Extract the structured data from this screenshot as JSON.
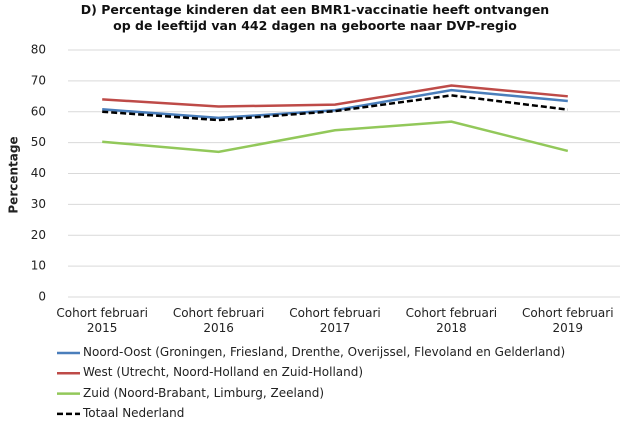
{
  "chart_data": {
    "type": "line",
    "title": "D) Percentage kinderen dat een BMR1-vaccinatie heeft ontvangen op de leeftijd van 442 dagen na geboorte naar DVP-regio",
    "y_label": "Percentage",
    "categories": [
      "Cohort februari 2015",
      "Cohort februari 2016",
      "Cohort februari 2017",
      "Cohort februari 2018",
      "Cohort februari 2019"
    ],
    "series": [
      {
        "name": "Noord-Oost (Groningen, Friesland, Drenthe, Overijssel, Flevoland en Gelderland)",
        "color": "#4a7ebb",
        "style": "solid",
        "values": [
          60.8,
          58,
          60.5,
          67,
          63.5
        ]
      },
      {
        "name": "West (Utrecht, Noord-Holland en Zuid-Holland)",
        "color": "#be4b48",
        "style": "solid",
        "values": [
          64,
          61.7,
          62.3,
          68.5,
          65
        ]
      },
      {
        "name": "Zuid (Noord-Brabant, Limburg, Zeeland)",
        "color": "#92c85a",
        "style": "solid",
        "values": [
          50.3,
          47,
          54,
          56.8,
          47.3
        ]
      },
      {
        "name": "Totaal Nederland",
        "color": "#000000",
        "style": "dashed",
        "values": [
          60,
          57.3,
          60.2,
          65.3,
          60.7
        ]
      }
    ],
    "ylim": [
      0,
      80
    ],
    "yticks": [
      0,
      10,
      20,
      30,
      40,
      50,
      60,
      70,
      80
    ],
    "grid": true,
    "legend": "bottom"
  }
}
